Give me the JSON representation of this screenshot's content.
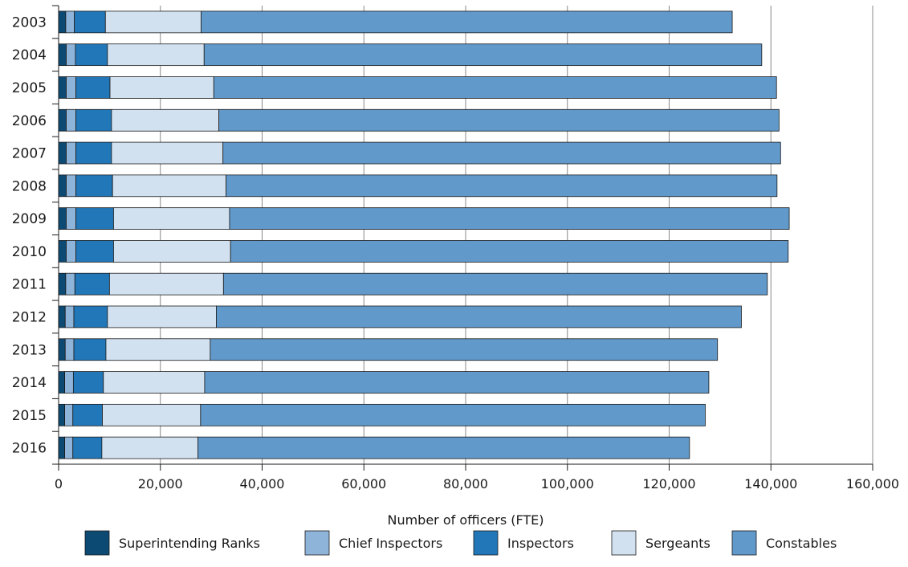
{
  "chart_data": {
    "type": "bar",
    "orientation": "horizontal",
    "stacked": true,
    "categories": [
      "2003",
      "2004",
      "2005",
      "2006",
      "2007",
      "2008",
      "2009",
      "2010",
      "2011",
      "2012",
      "2013",
      "2014",
      "2015",
      "2016"
    ],
    "series": [
      {
        "name": "Superintending Ranks",
        "color": "#0d4a73",
        "values": [
          1400,
          1500,
          1500,
          1500,
          1500,
          1500,
          1500,
          1500,
          1400,
          1300,
          1300,
          1200,
          1200,
          1200
        ]
      },
      {
        "name": "Chief Inspectors",
        "color": "#8fb4d9",
        "values": [
          1700,
          1800,
          1900,
          1900,
          1900,
          1900,
          1900,
          1900,
          1800,
          1700,
          1700,
          1700,
          1600,
          1600
        ]
      },
      {
        "name": "Inspectors",
        "color": "#2277b8",
        "values": [
          6100,
          6300,
          6700,
          7000,
          7000,
          7200,
          7400,
          7400,
          6800,
          6600,
          6300,
          5900,
          5800,
          5700
        ]
      },
      {
        "name": "Sergeants",
        "color": "#d2e1ef",
        "values": [
          18800,
          19000,
          20400,
          21100,
          21900,
          22300,
          22800,
          23000,
          22400,
          21400,
          20500,
          19900,
          19300,
          18900
        ]
      },
      {
        "name": "Constables",
        "color": "#6199ca",
        "values": [
          104400,
          109600,
          110600,
          110100,
          109600,
          108300,
          110000,
          109600,
          106900,
          103200,
          99700,
          99100,
          99200,
          96600
        ]
      }
    ],
    "xlabel": "Number of officers (FTE)",
    "ylabel": "",
    "title": "",
    "xlim": [
      0,
      160000
    ],
    "xticks": [
      0,
      20000,
      40000,
      60000,
      80000,
      100000,
      120000,
      140000,
      160000
    ],
    "xtick_labels": [
      "0",
      "20,000",
      "40,000",
      "60,000",
      "80,000",
      "100,000",
      "120,000",
      "140,000",
      "160,000"
    ],
    "grid": "vertical",
    "legend": "bottom"
  }
}
